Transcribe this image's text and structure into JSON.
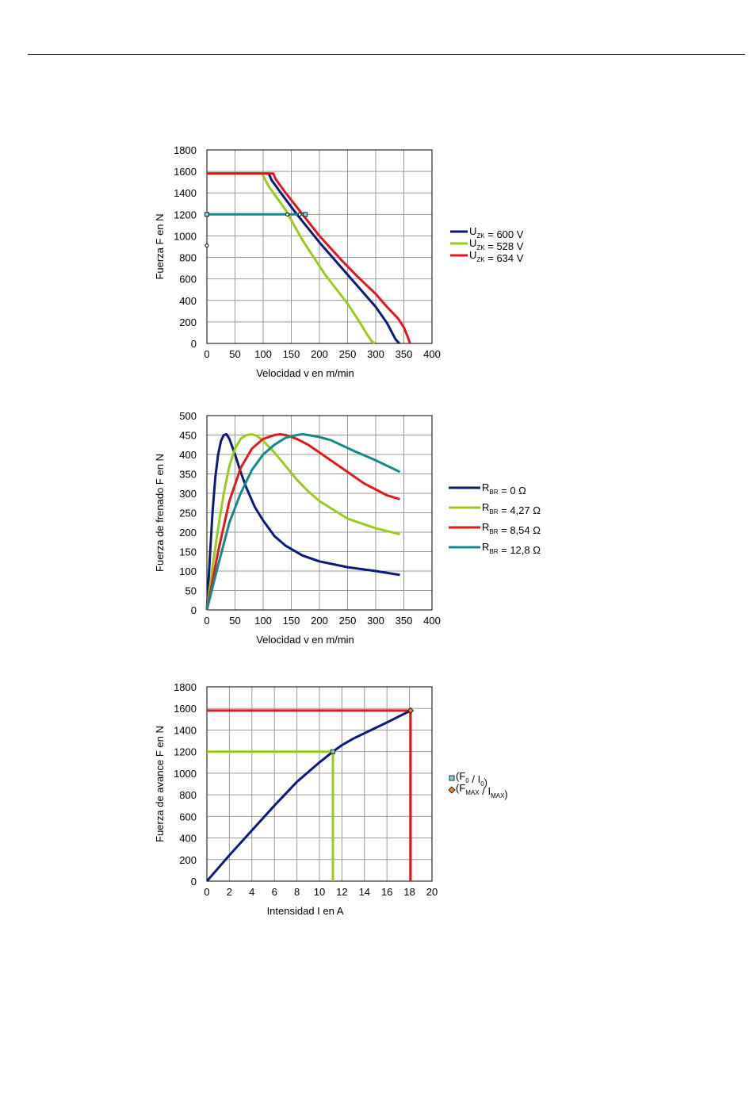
{
  "colors": {
    "navy": "#0a1a7a",
    "green": "#99cc1a",
    "red": "#e3161c",
    "teal": "#138a8a",
    "grid": "#999999"
  },
  "chart_data": [
    {
      "type": "line",
      "xlabel": "Velocidad v en m/min",
      "ylabel": "Fuerza F en N",
      "xlim": [
        0,
        400
      ],
      "ylim": [
        0,
        1800
      ],
      "xticks": [
        0,
        50,
        100,
        150,
        200,
        250,
        300,
        350,
        400
      ],
      "yticks": [
        0,
        200,
        400,
        600,
        800,
        1000,
        1200,
        1400,
        1600,
        1800
      ],
      "grid": true,
      "legend_position": "right",
      "legend": [
        {
          "prefix": "U",
          "sub": "ZK",
          "suffix": " = 600 V",
          "color": "navy"
        },
        {
          "prefix": "U",
          "sub": "ZK",
          "suffix": " = 528 V",
          "color": "green"
        },
        {
          "prefix": "U",
          "sub": "ZK",
          "suffix": " = 634 V",
          "color": "red"
        }
      ],
      "series": [
        {
          "name": "U ZK = 600 V",
          "color": "navy",
          "x": [
            0,
            110,
            115,
            130,
            160,
            200,
            240,
            270,
            300,
            320,
            335,
            342
          ],
          "y": [
            1580,
            1580,
            1520,
            1410,
            1200,
            940,
            700,
            520,
            340,
            190,
            40,
            0
          ]
        },
        {
          "name": "U ZK = 528 V",
          "color": "green",
          "x": [
            0,
            98,
            110,
            140,
            170,
            210,
            250,
            270,
            285,
            293,
            298
          ],
          "y": [
            1580,
            1580,
            1460,
            1240,
            960,
            640,
            370,
            210,
            80,
            20,
            0
          ]
        },
        {
          "name": "U ZK = 634 V",
          "color": "red",
          "x": [
            0,
            118,
            122,
            140,
            170,
            200,
            240,
            270,
            300,
            320,
            340,
            350,
            357,
            361
          ],
          "y": [
            1580,
            1580,
            1530,
            1400,
            1200,
            1000,
            770,
            610,
            460,
            340,
            230,
            150,
            60,
            0
          ]
        },
        {
          "name": "",
          "color": "teal",
          "x": [
            0,
            175
          ],
          "y": [
            1200,
            1200
          ]
        }
      ],
      "markers": [
        {
          "x": 0,
          "y": 1200,
          "shape": "square"
        },
        {
          "x": 143,
          "y": 1200,
          "shape": "dot"
        },
        {
          "x": 165,
          "y": 1200,
          "shape": "dot"
        },
        {
          "x": 175,
          "y": 1200,
          "shape": "square"
        },
        {
          "x": 0,
          "y": 910,
          "shape": "dot"
        }
      ]
    },
    {
      "type": "line",
      "xlabel": "Velocidad v en m/min",
      "ylabel": "Fuerza de frenado F en N",
      "xlim": [
        0,
        400
      ],
      "ylim": [
        0,
        500
      ],
      "xticks": [
        0,
        50,
        100,
        150,
        200,
        250,
        300,
        350,
        400
      ],
      "yticks": [
        0,
        50,
        100,
        150,
        200,
        250,
        300,
        350,
        400,
        450,
        500
      ],
      "grid": true,
      "legend_position": "right",
      "legend": [
        {
          "prefix": "R",
          "sub": "BR",
          "suffix": " = 0 Ω",
          "color": "navy"
        },
        {
          "prefix": "R",
          "sub": "BR",
          "suffix": " = 4,27 Ω",
          "color": "green"
        },
        {
          "prefix": "R",
          "sub": "BR",
          "suffix": " = 8,54 Ω",
          "color": "red"
        },
        {
          "prefix": "R",
          "sub": "BR",
          "suffix": " = 12,8 Ω",
          "color": "teal"
        }
      ],
      "series": [
        {
          "name": "R BR = 0 Ω",
          "color": "navy",
          "x": [
            0,
            5,
            10,
            15,
            20,
            25,
            30,
            35,
            40,
            50,
            60,
            70,
            85,
            100,
            120,
            140,
            170,
            200,
            250,
            300,
            343
          ],
          "y": [
            0,
            130,
            250,
            340,
            400,
            435,
            450,
            452,
            440,
            400,
            355,
            315,
            265,
            230,
            190,
            165,
            140,
            125,
            110,
            100,
            90
          ]
        },
        {
          "name": "R BR = 4,27 Ω",
          "color": "green",
          "x": [
            0,
            10,
            20,
            30,
            40,
            50,
            60,
            70,
            80,
            90,
            100,
            120,
            140,
            160,
            180,
            200,
            250,
            300,
            343
          ],
          "y": [
            0,
            110,
            210,
            300,
            370,
            415,
            440,
            450,
            452,
            447,
            435,
            405,
            370,
            335,
            305,
            280,
            235,
            210,
            195
          ]
        },
        {
          "name": "R BR = 8,54 Ω",
          "color": "red",
          "x": [
            0,
            20,
            40,
            60,
            80,
            100,
            120,
            130,
            140,
            160,
            180,
            200,
            240,
            280,
            320,
            343
          ],
          "y": [
            0,
            150,
            280,
            365,
            415,
            440,
            450,
            452,
            450,
            440,
            425,
            405,
            365,
            325,
            295,
            285
          ]
        },
        {
          "name": "R BR = 12,8 Ω",
          "color": "teal",
          "x": [
            0,
            20,
            40,
            60,
            80,
            100,
            120,
            140,
            160,
            170,
            180,
            200,
            220,
            260,
            300,
            343
          ],
          "y": [
            0,
            115,
            225,
            300,
            360,
            400,
            425,
            443,
            450,
            452,
            450,
            445,
            437,
            410,
            385,
            355
          ]
        }
      ],
      "markers": []
    },
    {
      "type": "line",
      "xlabel": "Intensidad I en A",
      "ylabel": "Fuerza de avance F en N",
      "xlim": [
        0,
        20
      ],
      "ylim": [
        0,
        1800
      ],
      "xticks": [
        0,
        2,
        4,
        6,
        8,
        10,
        12,
        14,
        16,
        18,
        20
      ],
      "yticks": [
        0,
        200,
        400,
        600,
        800,
        1000,
        1200,
        1400,
        1600,
        1800
      ],
      "grid": true,
      "legend_position": "right",
      "legend": [
        {
          "prefix": "(F",
          "sub": "0",
          "mid": " / I",
          "sub2": "0",
          "suffix": ")",
          "color": "teal",
          "marker": "square"
        },
        {
          "prefix": "(F",
          "sub": "MAX",
          "mid": " / I",
          "sub2": "MAX",
          "suffix": ")",
          "color": "#e08a30",
          "marker": "diamond"
        }
      ],
      "series": [
        {
          "name": "",
          "color": "navy",
          "x": [
            0,
            2,
            4,
            6,
            8,
            10,
            11.2,
            12,
            13,
            14,
            16,
            18.1
          ],
          "y": [
            0,
            240,
            470,
            700,
            920,
            1100,
            1200,
            1260,
            1320,
            1370,
            1470,
            1580
          ]
        },
        {
          "name": "",
          "color": "green",
          "x": [
            0,
            11.2,
            11.2
          ],
          "y": [
            1200,
            1200,
            0
          ]
        },
        {
          "name": "",
          "color": "red",
          "x": [
            0,
            18.1,
            18.1
          ],
          "y": [
            1580,
            1580,
            0
          ]
        }
      ],
      "markers": [
        {
          "x": 11.2,
          "y": 1200,
          "shape": "square"
        },
        {
          "x": 18.1,
          "y": 1580,
          "shape": "diamond"
        }
      ]
    }
  ]
}
